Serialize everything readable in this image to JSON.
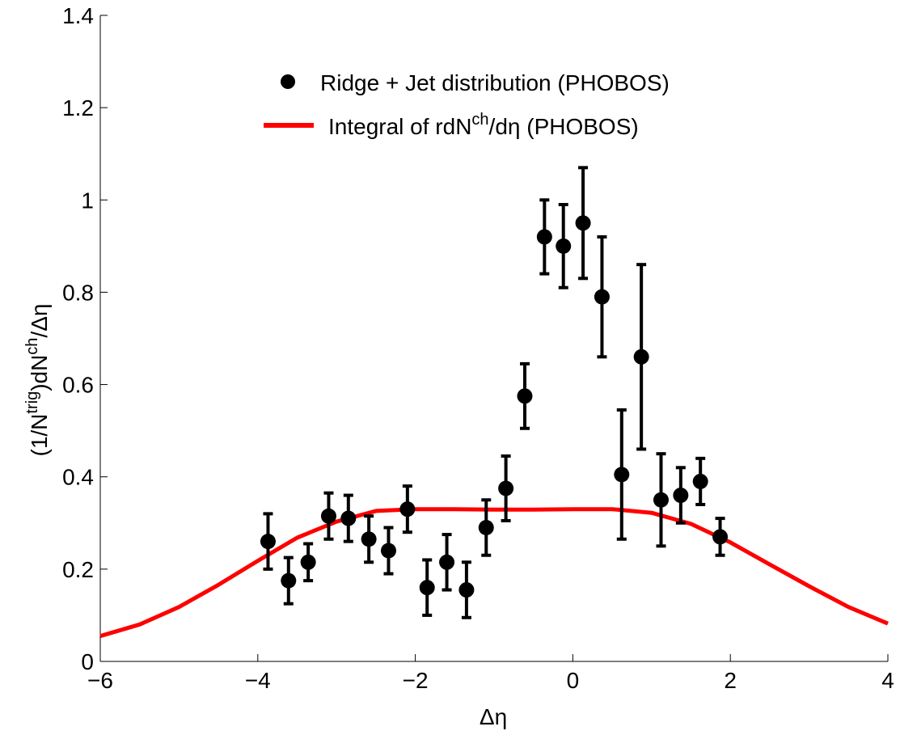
{
  "chart_data": {
    "type": "scatter",
    "xlim": [
      -6,
      4
    ],
    "ylim": [
      0,
      1.4
    ],
    "xticks": [
      -6,
      -4,
      -2,
      0,
      2,
      4
    ],
    "yticks": [
      0,
      0.2,
      0.4,
      0.6,
      0.8,
      1,
      1.2,
      1.4
    ],
    "xtick_labels": [
      "−6",
      "−4",
      "−2",
      "0",
      "2",
      "4"
    ],
    "ytick_labels": [
      "0",
      "0.2",
      "0.4",
      "0.6",
      "0.8",
      "1",
      "1.2",
      "1.4"
    ],
    "xlabel": "Δη",
    "ylabel": {
      "p1": "(1/N",
      "sup1": "trig",
      "p2": ")dN",
      "sup2": "ch",
      "p3": "/Δη"
    },
    "grid": false,
    "legend_position": "top-center",
    "series": [
      {
        "name": "Ridge + Jet distribution (PHOBOS)",
        "kind": "scatter-errorbar",
        "color": "#000000",
        "points": [
          {
            "x": -3.87,
            "y": 0.26,
            "err": 0.06
          },
          {
            "x": -3.61,
            "y": 0.175,
            "err": 0.05
          },
          {
            "x": -3.36,
            "y": 0.215,
            "err": 0.04
          },
          {
            "x": -3.1,
            "y": 0.315,
            "err": 0.05
          },
          {
            "x": -2.85,
            "y": 0.31,
            "err": 0.05
          },
          {
            "x": -2.59,
            "y": 0.265,
            "err": 0.05
          },
          {
            "x": -2.34,
            "y": 0.24,
            "err": 0.05
          },
          {
            "x": -2.1,
            "y": 0.33,
            "err": 0.05
          },
          {
            "x": -1.85,
            "y": 0.16,
            "err": 0.06
          },
          {
            "x": -1.6,
            "y": 0.215,
            "err": 0.06
          },
          {
            "x": -1.35,
            "y": 0.155,
            "err": 0.06
          },
          {
            "x": -1.1,
            "y": 0.29,
            "err": 0.06
          },
          {
            "x": -0.85,
            "y": 0.375,
            "err": 0.07
          },
          {
            "x": -0.61,
            "y": 0.575,
            "err": 0.07
          },
          {
            "x": -0.36,
            "y": 0.92,
            "err": 0.08
          },
          {
            "x": -0.12,
            "y": 0.9,
            "err": 0.09
          },
          {
            "x": 0.13,
            "y": 0.95,
            "err": 0.12
          },
          {
            "x": 0.37,
            "y": 0.79,
            "err": 0.13
          },
          {
            "x": 0.62,
            "y": 0.405,
            "err": 0.14
          },
          {
            "x": 0.87,
            "y": 0.66,
            "err": 0.2
          },
          {
            "x": 1.12,
            "y": 0.35,
            "err": 0.1
          },
          {
            "x": 1.37,
            "y": 0.36,
            "err": 0.06
          },
          {
            "x": 1.62,
            "y": 0.39,
            "err": 0.05
          },
          {
            "x": 1.87,
            "y": 0.27,
            "err": 0.04
          }
        ]
      },
      {
        "name": {
          "p1": "Integral  of  rdN",
          "sup": "ch",
          "p2": "/dη (PHOBOS)"
        },
        "kind": "line",
        "color": "#ff0000",
        "x": [
          -6,
          -5.5,
          -5,
          -4.5,
          -4,
          -3.5,
          -3,
          -2.5,
          -2,
          -1.5,
          -1,
          -0.5,
          0,
          0.5,
          1,
          1.5,
          2,
          2.5,
          3,
          3.5,
          4
        ],
        "y": [
          0.055,
          0.08,
          0.118,
          0.166,
          0.218,
          0.268,
          0.303,
          0.326,
          0.33,
          0.33,
          0.329,
          0.329,
          0.33,
          0.33,
          0.322,
          0.298,
          0.258,
          0.21,
          0.163,
          0.118,
          0.082
        ]
      }
    ]
  }
}
